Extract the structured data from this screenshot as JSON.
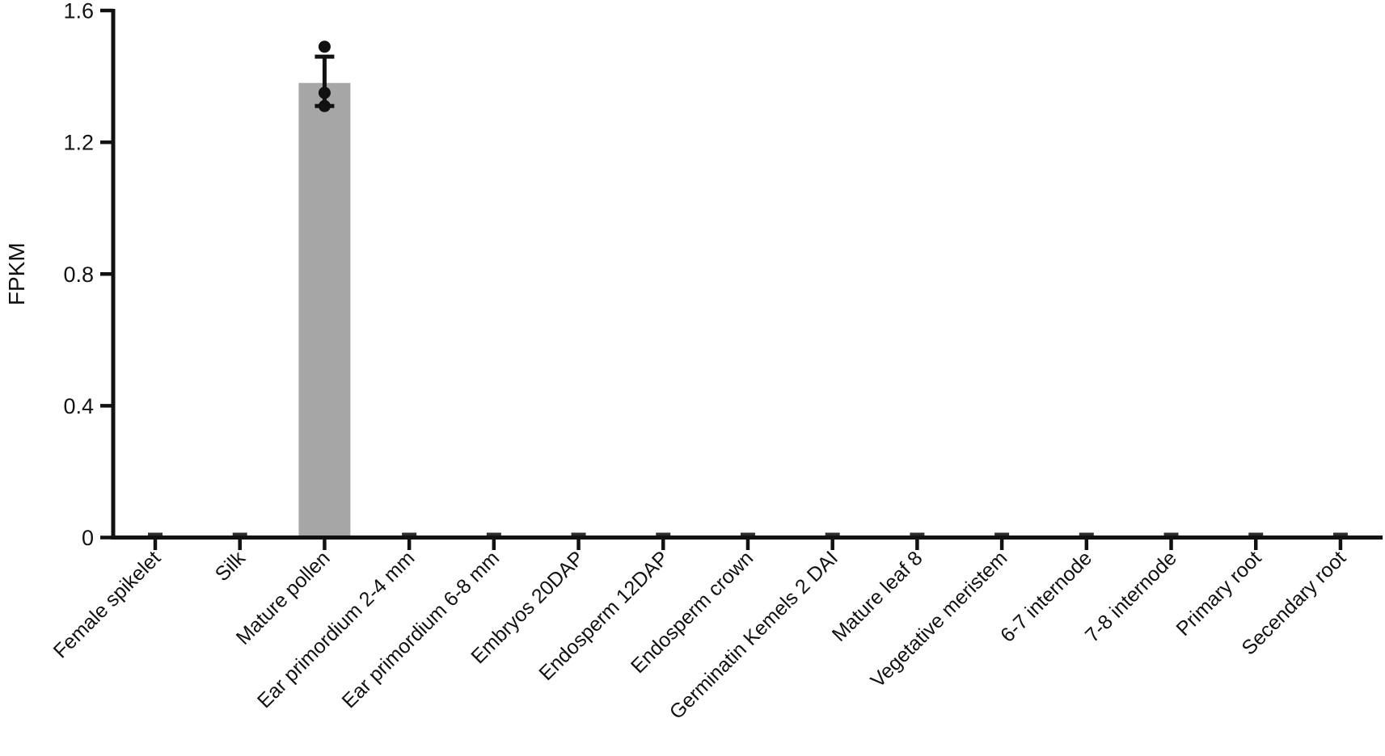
{
  "chart_data": {
    "type": "bar",
    "title": "",
    "xlabel": "",
    "ylabel": "FPKM",
    "categories": [
      "Female spikelet",
      "Silk",
      "Mature pollen",
      "Ear primordium 2-4 mm",
      "Ear primordium 6-8 mm",
      "Embryos 20DAP",
      "Endosperm 12DAP",
      "Endosperm crown",
      "Germinatin Kemels 2 DAI",
      "Mature leaf 8",
      "Vegetative meristem",
      "6-7 internode",
      "7-8 internode",
      "Primary root",
      "Secendary root"
    ],
    "values": [
      0,
      0,
      1.38,
      0,
      0,
      0,
      0,
      0,
      0,
      0,
      0,
      0,
      0,
      0,
      0
    ],
    "error_bar": {
      "category": "Mature pollen",
      "low": 1.31,
      "high": 1.46
    },
    "data_points": {
      "category": "Mature pollen",
      "values": [
        1.49,
        1.35,
        1.31
      ]
    },
    "ylim": [
      0,
      1.6
    ],
    "yticks": [
      0,
      0.4,
      0.8,
      1.2,
      1.6
    ],
    "ytick_labels": [
      "0",
      "0.4",
      "0.8",
      "1.2",
      "1.6"
    ],
    "x_labels_rotation_deg": 45,
    "grid": false,
    "legend": null,
    "bar_color": "#a6a6a6",
    "axis_color": "#111111",
    "point_color": "#111111",
    "text_color": "#111111"
  }
}
